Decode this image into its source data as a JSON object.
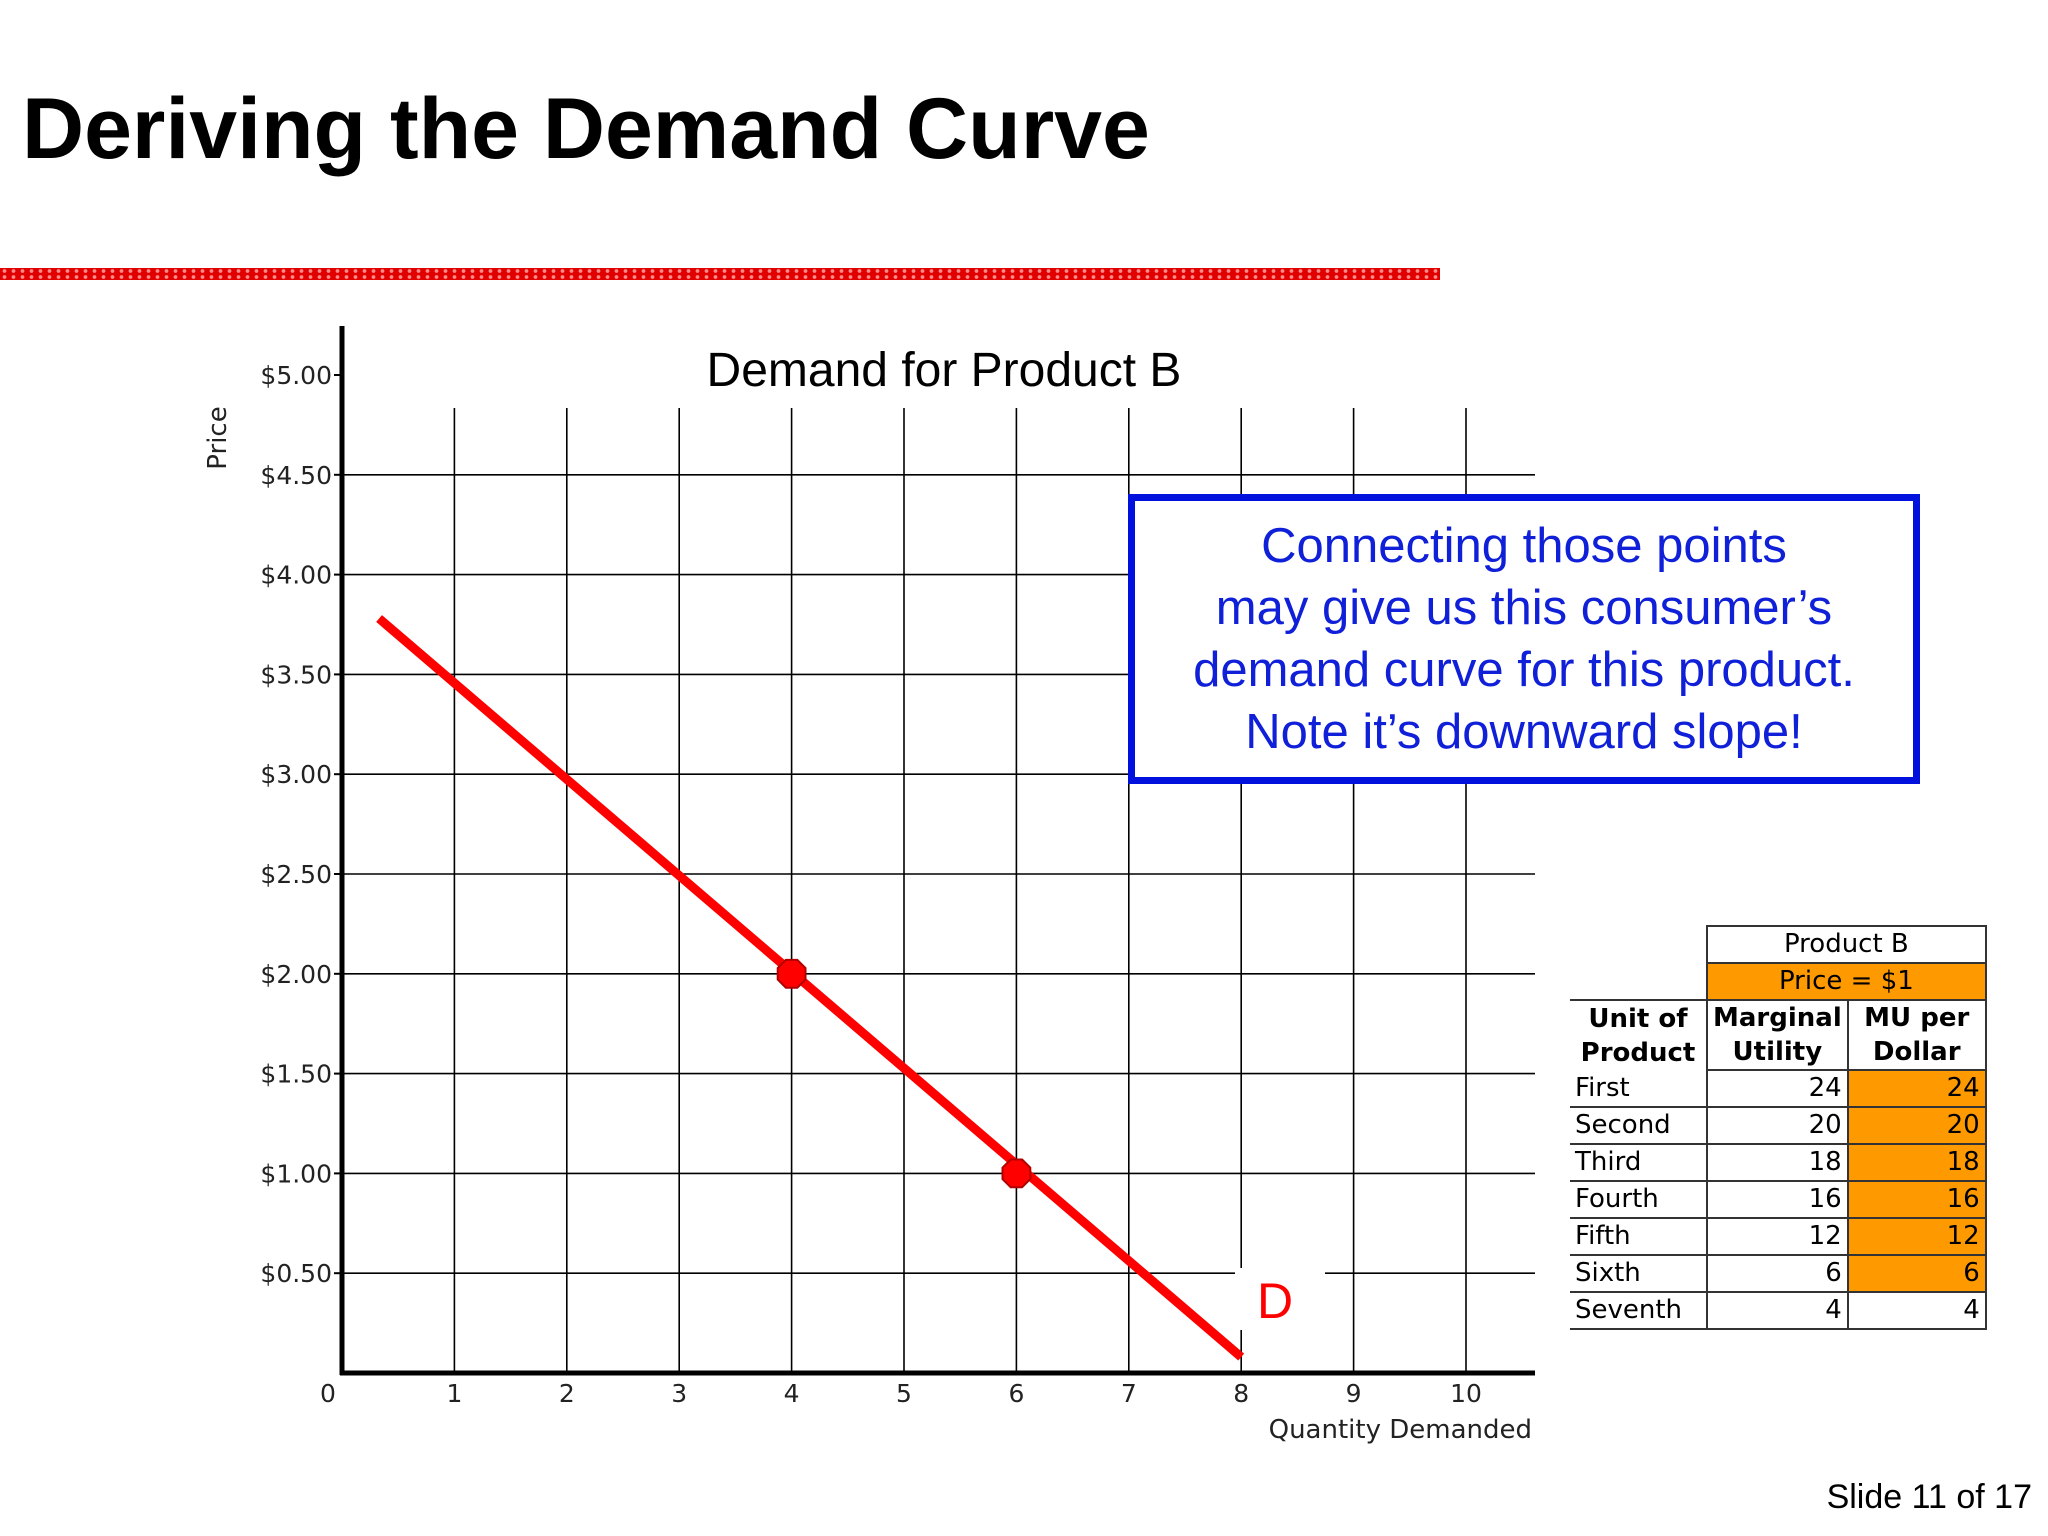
{
  "slide": {
    "title": "Deriving the Demand Curve",
    "slide_number": "Slide 11 of 17"
  },
  "callout": {
    "lines": [
      "Connecting those points",
      "may give us this consumer’s",
      "demand curve for this product.",
      "Note it’s downward slope!"
    ]
  },
  "chart_data": {
    "type": "line",
    "title": "Demand for Product B",
    "xlabel": "Quantity Demanded",
    "ylabel": "Price",
    "xlim": [
      0,
      10.5
    ],
    "ylim": [
      0,
      5.25
    ],
    "x_ticks": [
      "0",
      "1",
      "2",
      "3",
      "4",
      "5",
      "6",
      "7",
      "8",
      "9",
      "10"
    ],
    "y_ticks": [
      {
        "value": 5.0,
        "label": "$5.00"
      },
      {
        "value": 4.5,
        "label": "$4.50"
      },
      {
        "value": 4.0,
        "label": "$4.00"
      },
      {
        "value": 3.5,
        "label": "$3.50"
      },
      {
        "value": 3.0,
        "label": "$3.00"
      },
      {
        "value": 2.5,
        "label": "$2.50"
      },
      {
        "value": 2.0,
        "label": "$2.00"
      },
      {
        "value": 1.5,
        "label": "$1.50"
      },
      {
        "value": 1.0,
        "label": "$1.00"
      },
      {
        "value": 0.5,
        "label": "$0.50"
      }
    ],
    "grid": true,
    "series": [
      {
        "name": "D",
        "x": [
          0.33,
          8.0
        ],
        "y": [
          3.78,
          0.08
        ],
        "color": "#ff0000"
      }
    ],
    "points": [
      {
        "x": 4,
        "y": 2.0
      },
      {
        "x": 6,
        "y": 1.0
      }
    ],
    "curve_label": "D"
  },
  "table": {
    "title": "Product B",
    "price": "Price = $1",
    "headers": [
      [
        "Unit of",
        "Product"
      ],
      [
        "Marginal",
        "Utility"
      ],
      [
        "MU per",
        "Dollar"
      ]
    ],
    "rows": [
      {
        "unit": "First",
        "mu": "24",
        "mu_per_dollar": "24",
        "highlight": true
      },
      {
        "unit": "Second",
        "mu": "20",
        "mu_per_dollar": "20",
        "highlight": true
      },
      {
        "unit": "Third",
        "mu": "18",
        "mu_per_dollar": "18",
        "highlight": true
      },
      {
        "unit": "Fourth",
        "mu": "16",
        "mu_per_dollar": "16",
        "highlight": true
      },
      {
        "unit": "Fifth",
        "mu": "12",
        "mu_per_dollar": "12",
        "highlight": true
      },
      {
        "unit": "Sixth",
        "mu": "6",
        "mu_per_dollar": "6",
        "highlight": true
      },
      {
        "unit": "Seventh",
        "mu": "4",
        "mu_per_dollar": "4",
        "highlight": false
      }
    ],
    "highlight_color": "#ff9900"
  }
}
